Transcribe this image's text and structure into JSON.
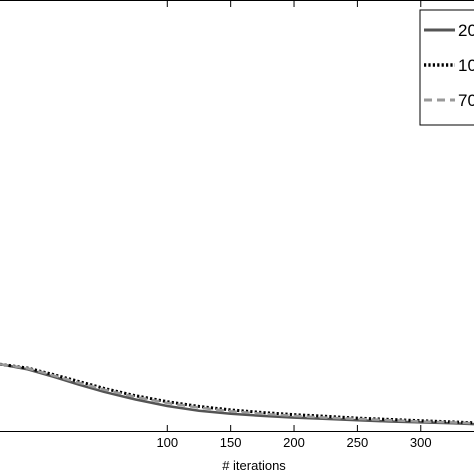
{
  "chart_data": {
    "type": "line",
    "title": "",
    "xlabel": "# iterations",
    "ylabel": "",
    "xlim": [
      -32,
      342
    ],
    "ylim": [
      0,
      1
    ],
    "x_ticks": [
      100,
      150,
      200,
      250,
      300
    ],
    "x_tick_labels": [
      "100",
      "150",
      "200",
      "250",
      "300"
    ],
    "grid": false,
    "legend_position": "top-right",
    "legend_entries": [
      "20",
      "10",
      "70"
    ],
    "series": [
      {
        "name": "20",
        "style": "solid",
        "color": "#555555",
        "x": [
          -32,
          -10,
          10,
          30,
          50,
          75,
          100,
          125,
          150,
          175,
          200,
          225,
          250,
          275,
          300,
          325,
          342
        ],
        "y": [
          0.155,
          0.143,
          0.126,
          0.108,
          0.091,
          0.073,
          0.058,
          0.047,
          0.04,
          0.035,
          0.031,
          0.028,
          0.025,
          0.022,
          0.02,
          0.018,
          0.016
        ]
      },
      {
        "name": "10",
        "style": "dotted",
        "color": "#000000",
        "x": [
          -32,
          -10,
          10,
          30,
          50,
          75,
          100,
          125,
          150,
          175,
          200,
          225,
          250,
          275,
          300,
          325,
          342
        ],
        "y": [
          0.155,
          0.146,
          0.131,
          0.115,
          0.099,
          0.082,
          0.068,
          0.057,
          0.049,
          0.043,
          0.038,
          0.034,
          0.03,
          0.027,
          0.024,
          0.021,
          0.019
        ]
      },
      {
        "name": "70",
        "style": "dashed",
        "color": "#999999",
        "x": [
          -32,
          -10,
          10,
          30,
          50,
          75,
          100,
          125,
          150,
          175,
          200,
          225,
          250,
          275,
          300,
          325,
          342
        ],
        "y": [
          0.155,
          0.145,
          0.129,
          0.112,
          0.096,
          0.079,
          0.065,
          0.054,
          0.046,
          0.04,
          0.035,
          0.031,
          0.028,
          0.025,
          0.022,
          0.02,
          0.018
        ]
      }
    ]
  }
}
